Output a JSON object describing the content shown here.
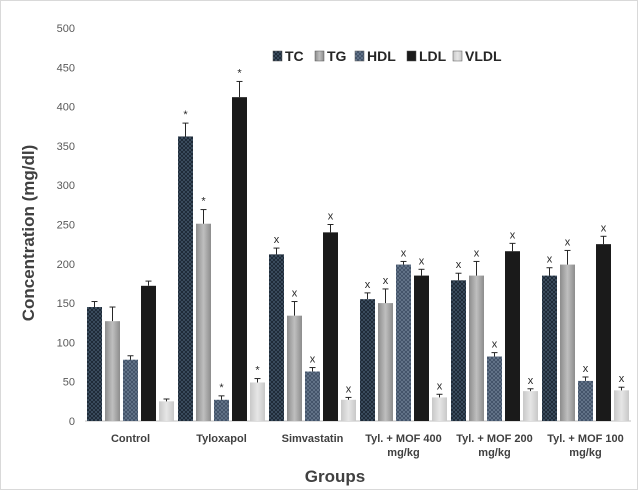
{
  "chart_data": {
    "type": "bar",
    "xlabel": "Groups",
    "ylabel": "Concentration (mg/dl)",
    "ylim": [
      0,
      500
    ],
    "yticks": [
      0,
      50,
      100,
      150,
      200,
      250,
      300,
      350,
      400,
      450,
      500
    ],
    "grid": false,
    "legend_position": "top-right",
    "categories": [
      "Control",
      "Tyloxapol",
      "Simvastatin",
      "Tyl. + MOF 400 mg/kg",
      "Tyl. + MOF 200 mg/kg",
      "Tyl. + MOF 100 mg/kg"
    ],
    "series": [
      {
        "name": "TC",
        "color": "#1f2b38",
        "pattern": "dots",
        "values": [
          145,
          362,
          212,
          155,
          179,
          185
        ],
        "errors": [
          7,
          17,
          8,
          8,
          9,
          10
        ],
        "annotations": [
          "",
          "*",
          "x",
          "x",
          "x",
          "x"
        ]
      },
      {
        "name": "TG",
        "color": "#a6a6a6",
        "pattern": "solid",
        "values": [
          127,
          251,
          134,
          150,
          185,
          199
        ],
        "errors": [
          18,
          18,
          18,
          18,
          18,
          18
        ],
        "annotations": [
          "",
          "*",
          "x",
          "x",
          "x",
          "x"
        ]
      },
      {
        "name": "HDL",
        "color": "#44546a",
        "pattern": "dots",
        "values": [
          78,
          27,
          63,
          199,
          82,
          51
        ],
        "errors": [
          5,
          5,
          5,
          4,
          5,
          5
        ],
        "annotations": [
          "",
          "*",
          "x",
          "x",
          "x",
          "x"
        ]
      },
      {
        "name": "LDL",
        "color": "#1a1a1a",
        "pattern": "solid",
        "values": [
          172,
          412,
          240,
          185,
          216,
          225
        ],
        "errors": [
          6,
          20,
          10,
          8,
          10,
          10
        ],
        "annotations": [
          "",
          "*",
          "x",
          "x",
          "x",
          "x"
        ]
      },
      {
        "name": "VLDL",
        "color": "#d0d0d0",
        "pattern": "solid",
        "values": [
          25,
          49,
          27,
          30,
          38,
          39
        ],
        "errors": [
          3,
          5,
          3,
          4,
          3,
          4
        ],
        "annotations": [
          "",
          "*",
          "x",
          "x",
          "x",
          "x"
        ]
      }
    ]
  }
}
